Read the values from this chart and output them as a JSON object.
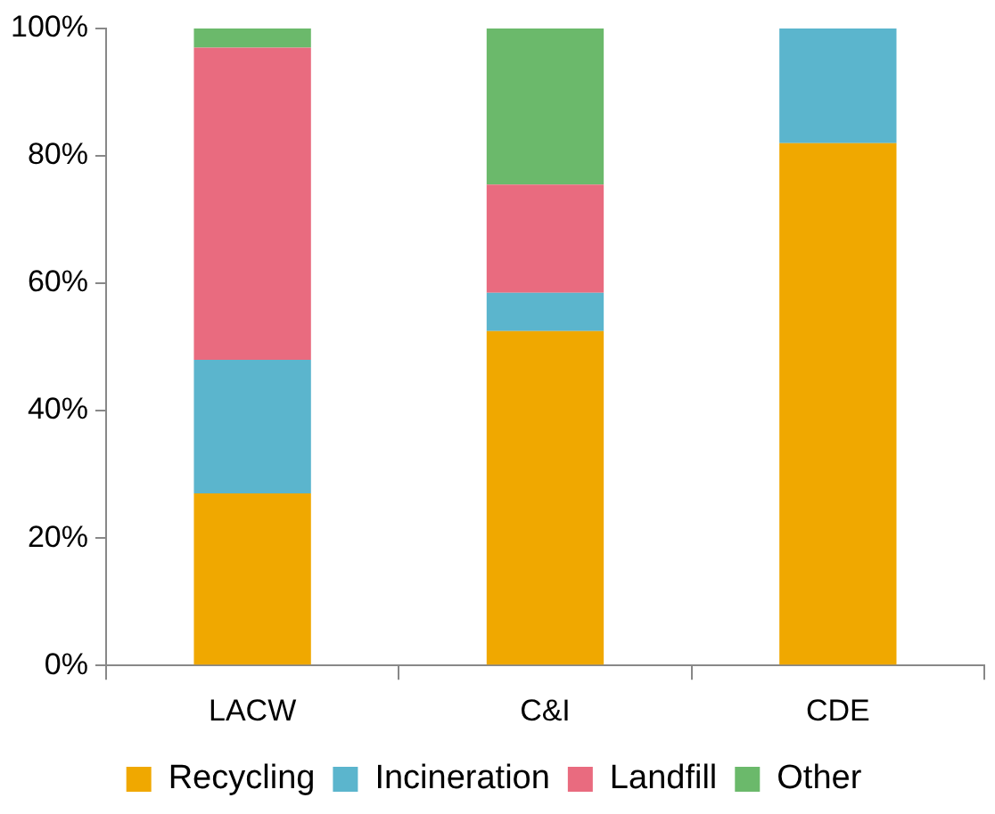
{
  "chart_data": {
    "type": "bar",
    "stacked": true,
    "categories": [
      "LACW",
      "C&I",
      "CDE"
    ],
    "series": [
      {
        "name": "Recycling",
        "color": "#f0a800",
        "values": [
          27,
          52.5,
          82
        ]
      },
      {
        "name": "Incineration",
        "color": "#5bb5cd",
        "values": [
          21,
          6,
          18
        ]
      },
      {
        "name": "Landfill",
        "color": "#e96b7f",
        "values": [
          49,
          17,
          0
        ]
      },
      {
        "name": "Other",
        "color": "#6bb96b",
        "values": [
          3,
          24.5,
          0
        ]
      }
    ],
    "ylim": [
      0,
      100
    ],
    "yticks": [
      {
        "value": 0,
        "label": "0%"
      },
      {
        "value": 20,
        "label": "20%"
      },
      {
        "value": 40,
        "label": "40%"
      },
      {
        "value": 60,
        "label": "60%"
      },
      {
        "value": 80,
        "label": "80%"
      },
      {
        "value": 100,
        "label": "100%"
      }
    ],
    "legend": "bottom"
  }
}
